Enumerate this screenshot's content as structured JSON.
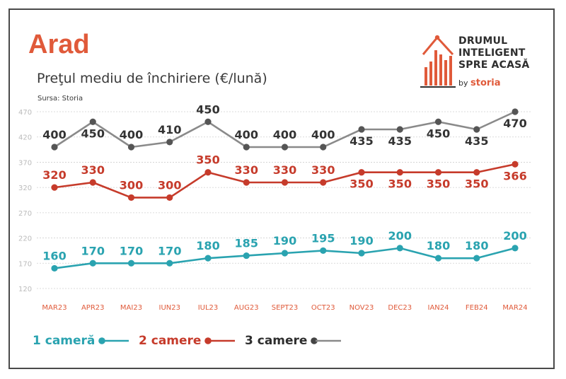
{
  "header": {
    "title": "Arad",
    "subtitle": "Preţul mediu de închiriere (€/lună)",
    "source": "Sursa: Storia"
  },
  "logo": {
    "line1": "DRUMUL",
    "line2": "INTELIGENT",
    "line3": "SPRE ACASĂ",
    "by": "by",
    "brand": "storia",
    "icon": "house-bar-chart-icon"
  },
  "chart_data": {
    "type": "line",
    "categories": [
      "MAR23",
      "APR23",
      "MAI23",
      "IUN23",
      "IUL23",
      "AUG23",
      "SEPT23",
      "OCT23",
      "NOV23",
      "DEC23",
      "IAN24",
      "FEB24",
      "MAR24"
    ],
    "y_ticks": [
      120,
      170,
      220,
      270,
      320,
      370,
      420,
      470
    ],
    "ylim": [
      120,
      470
    ],
    "grid": true,
    "legend_position": "bottom-left",
    "series": [
      {
        "name": "1 cameră",
        "color": "#2aa3b0",
        "values": [
          160,
          170,
          170,
          170,
          180,
          185,
          190,
          195,
          190,
          200,
          180,
          180,
          200
        ],
        "label_position": "above"
      },
      {
        "name": "2 camere",
        "color": "#c63b2b",
        "values": [
          320,
          330,
          300,
          300,
          350,
          330,
          330,
          330,
          350,
          350,
          350,
          350,
          366
        ],
        "label_position": "mixed"
      },
      {
        "name": "3 camere",
        "color": "#8a8a8a",
        "label_color": "#333333",
        "values": [
          400,
          450,
          400,
          410,
          450,
          400,
          400,
          400,
          435,
          435,
          450,
          435,
          470
        ],
        "label_position": "mixed"
      }
    ]
  },
  "colors": {
    "accent": "#e05a3a",
    "tick": "#bbbbbb",
    "category": "#e05a3a",
    "grid": "#cfcfcf"
  }
}
